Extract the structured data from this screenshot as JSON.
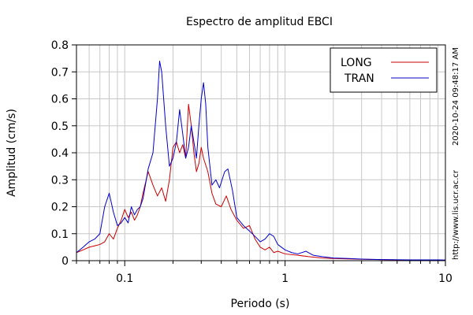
{
  "chart_data": {
    "type": "line",
    "title": "Espectro de amplitud EBCI",
    "xlabel": "Periodo (s)",
    "ylabel": "Amplitud (cm/s)",
    "xscale": "log",
    "xlim": [
      0.05,
      10
    ],
    "ylim": [
      0,
      0.8
    ],
    "x_ticks": [
      0.1,
      1,
      10
    ],
    "x_tick_labels": [
      "0.1",
      "1",
      "10"
    ],
    "y_ticks": [
      0,
      0.1,
      0.2,
      0.3,
      0.4,
      0.5,
      0.6,
      0.7,
      0.8
    ],
    "y_tick_labels": [
      "0",
      "0.1",
      "0.2",
      "0.3",
      "0.4",
      "0.5",
      "0.6",
      "0.7",
      "0.8"
    ],
    "grid": true,
    "legend_position": "top-right",
    "series": [
      {
        "name": "LONG",
        "color": "#cc0000",
        "points": [
          [
            0.05,
            0.03
          ],
          [
            0.055,
            0.04
          ],
          [
            0.06,
            0.05
          ],
          [
            0.065,
            0.055
          ],
          [
            0.07,
            0.06
          ],
          [
            0.075,
            0.07
          ],
          [
            0.08,
            0.1
          ],
          [
            0.085,
            0.08
          ],
          [
            0.09,
            0.12
          ],
          [
            0.095,
            0.15
          ],
          [
            0.1,
            0.19
          ],
          [
            0.105,
            0.16
          ],
          [
            0.11,
            0.18
          ],
          [
            0.115,
            0.15
          ],
          [
            0.12,
            0.17
          ],
          [
            0.125,
            0.2
          ],
          [
            0.13,
            0.25
          ],
          [
            0.14,
            0.33
          ],
          [
            0.15,
            0.28
          ],
          [
            0.16,
            0.24
          ],
          [
            0.17,
            0.27
          ],
          [
            0.18,
            0.22
          ],
          [
            0.19,
            0.3
          ],
          [
            0.2,
            0.42
          ],
          [
            0.21,
            0.44
          ],
          [
            0.22,
            0.4
          ],
          [
            0.23,
            0.43
          ],
          [
            0.24,
            0.38
          ],
          [
            0.25,
            0.58
          ],
          [
            0.26,
            0.5
          ],
          [
            0.27,
            0.4
          ],
          [
            0.28,
            0.33
          ],
          [
            0.29,
            0.36
          ],
          [
            0.3,
            0.42
          ],
          [
            0.31,
            0.38
          ],
          [
            0.33,
            0.33
          ],
          [
            0.35,
            0.25
          ],
          [
            0.37,
            0.21
          ],
          [
            0.4,
            0.2
          ],
          [
            0.43,
            0.24
          ],
          [
            0.46,
            0.19
          ],
          [
            0.5,
            0.15
          ],
          [
            0.55,
            0.12
          ],
          [
            0.6,
            0.13
          ],
          [
            0.65,
            0.08
          ],
          [
            0.7,
            0.05
          ],
          [
            0.75,
            0.04
          ],
          [
            0.8,
            0.05
          ],
          [
            0.85,
            0.03
          ],
          [
            0.9,
            0.035
          ],
          [
            1.0,
            0.025
          ],
          [
            1.2,
            0.02
          ],
          [
            1.4,
            0.015
          ],
          [
            1.7,
            0.01
          ],
          [
            2.0,
            0.008
          ],
          [
            3.0,
            0.005
          ],
          [
            5.0,
            0.003
          ],
          [
            8.0,
            0.002
          ],
          [
            10.0,
            0.002
          ]
        ]
      },
      {
        "name": "TRAN",
        "color": "#0000cc",
        "points": [
          [
            0.05,
            0.03
          ],
          [
            0.055,
            0.05
          ],
          [
            0.06,
            0.07
          ],
          [
            0.065,
            0.08
          ],
          [
            0.07,
            0.1
          ],
          [
            0.075,
            0.2
          ],
          [
            0.08,
            0.25
          ],
          [
            0.085,
            0.18
          ],
          [
            0.09,
            0.13
          ],
          [
            0.095,
            0.14
          ],
          [
            0.1,
            0.16
          ],
          [
            0.105,
            0.14
          ],
          [
            0.11,
            0.2
          ],
          [
            0.115,
            0.17
          ],
          [
            0.12,
            0.19
          ],
          [
            0.125,
            0.2
          ],
          [
            0.13,
            0.23
          ],
          [
            0.14,
            0.34
          ],
          [
            0.15,
            0.4
          ],
          [
            0.16,
            0.6
          ],
          [
            0.165,
            0.74
          ],
          [
            0.17,
            0.7
          ],
          [
            0.18,
            0.5
          ],
          [
            0.19,
            0.35
          ],
          [
            0.2,
            0.38
          ],
          [
            0.21,
            0.44
          ],
          [
            0.22,
            0.56
          ],
          [
            0.23,
            0.47
          ],
          [
            0.24,
            0.38
          ],
          [
            0.25,
            0.42
          ],
          [
            0.26,
            0.5
          ],
          [
            0.27,
            0.44
          ],
          [
            0.28,
            0.38
          ],
          [
            0.29,
            0.5
          ],
          [
            0.3,
            0.6
          ],
          [
            0.31,
            0.66
          ],
          [
            0.32,
            0.58
          ],
          [
            0.33,
            0.42
          ],
          [
            0.35,
            0.28
          ],
          [
            0.37,
            0.3
          ],
          [
            0.39,
            0.27
          ],
          [
            0.42,
            0.33
          ],
          [
            0.44,
            0.34
          ],
          [
            0.47,
            0.26
          ],
          [
            0.5,
            0.16
          ],
          [
            0.55,
            0.13
          ],
          [
            0.6,
            0.11
          ],
          [
            0.65,
            0.09
          ],
          [
            0.7,
            0.07
          ],
          [
            0.75,
            0.08
          ],
          [
            0.8,
            0.1
          ],
          [
            0.85,
            0.09
          ],
          [
            0.9,
            0.06
          ],
          [
            1.0,
            0.04
          ],
          [
            1.1,
            0.03
          ],
          [
            1.2,
            0.025
          ],
          [
            1.35,
            0.035
          ],
          [
            1.5,
            0.02
          ],
          [
            1.7,
            0.015
          ],
          [
            2.0,
            0.01
          ],
          [
            2.5,
            0.008
          ],
          [
            3.0,
            0.006
          ],
          [
            4.0,
            0.004
          ],
          [
            6.0,
            0.003
          ],
          [
            9.0,
            0.003
          ],
          [
            10.0,
            0.002
          ]
        ]
      }
    ]
  },
  "side_text": {
    "timestamp": "2020-10-24 09:48:17 AM",
    "url": "http://www.lis.ucr.ac.cr"
  }
}
